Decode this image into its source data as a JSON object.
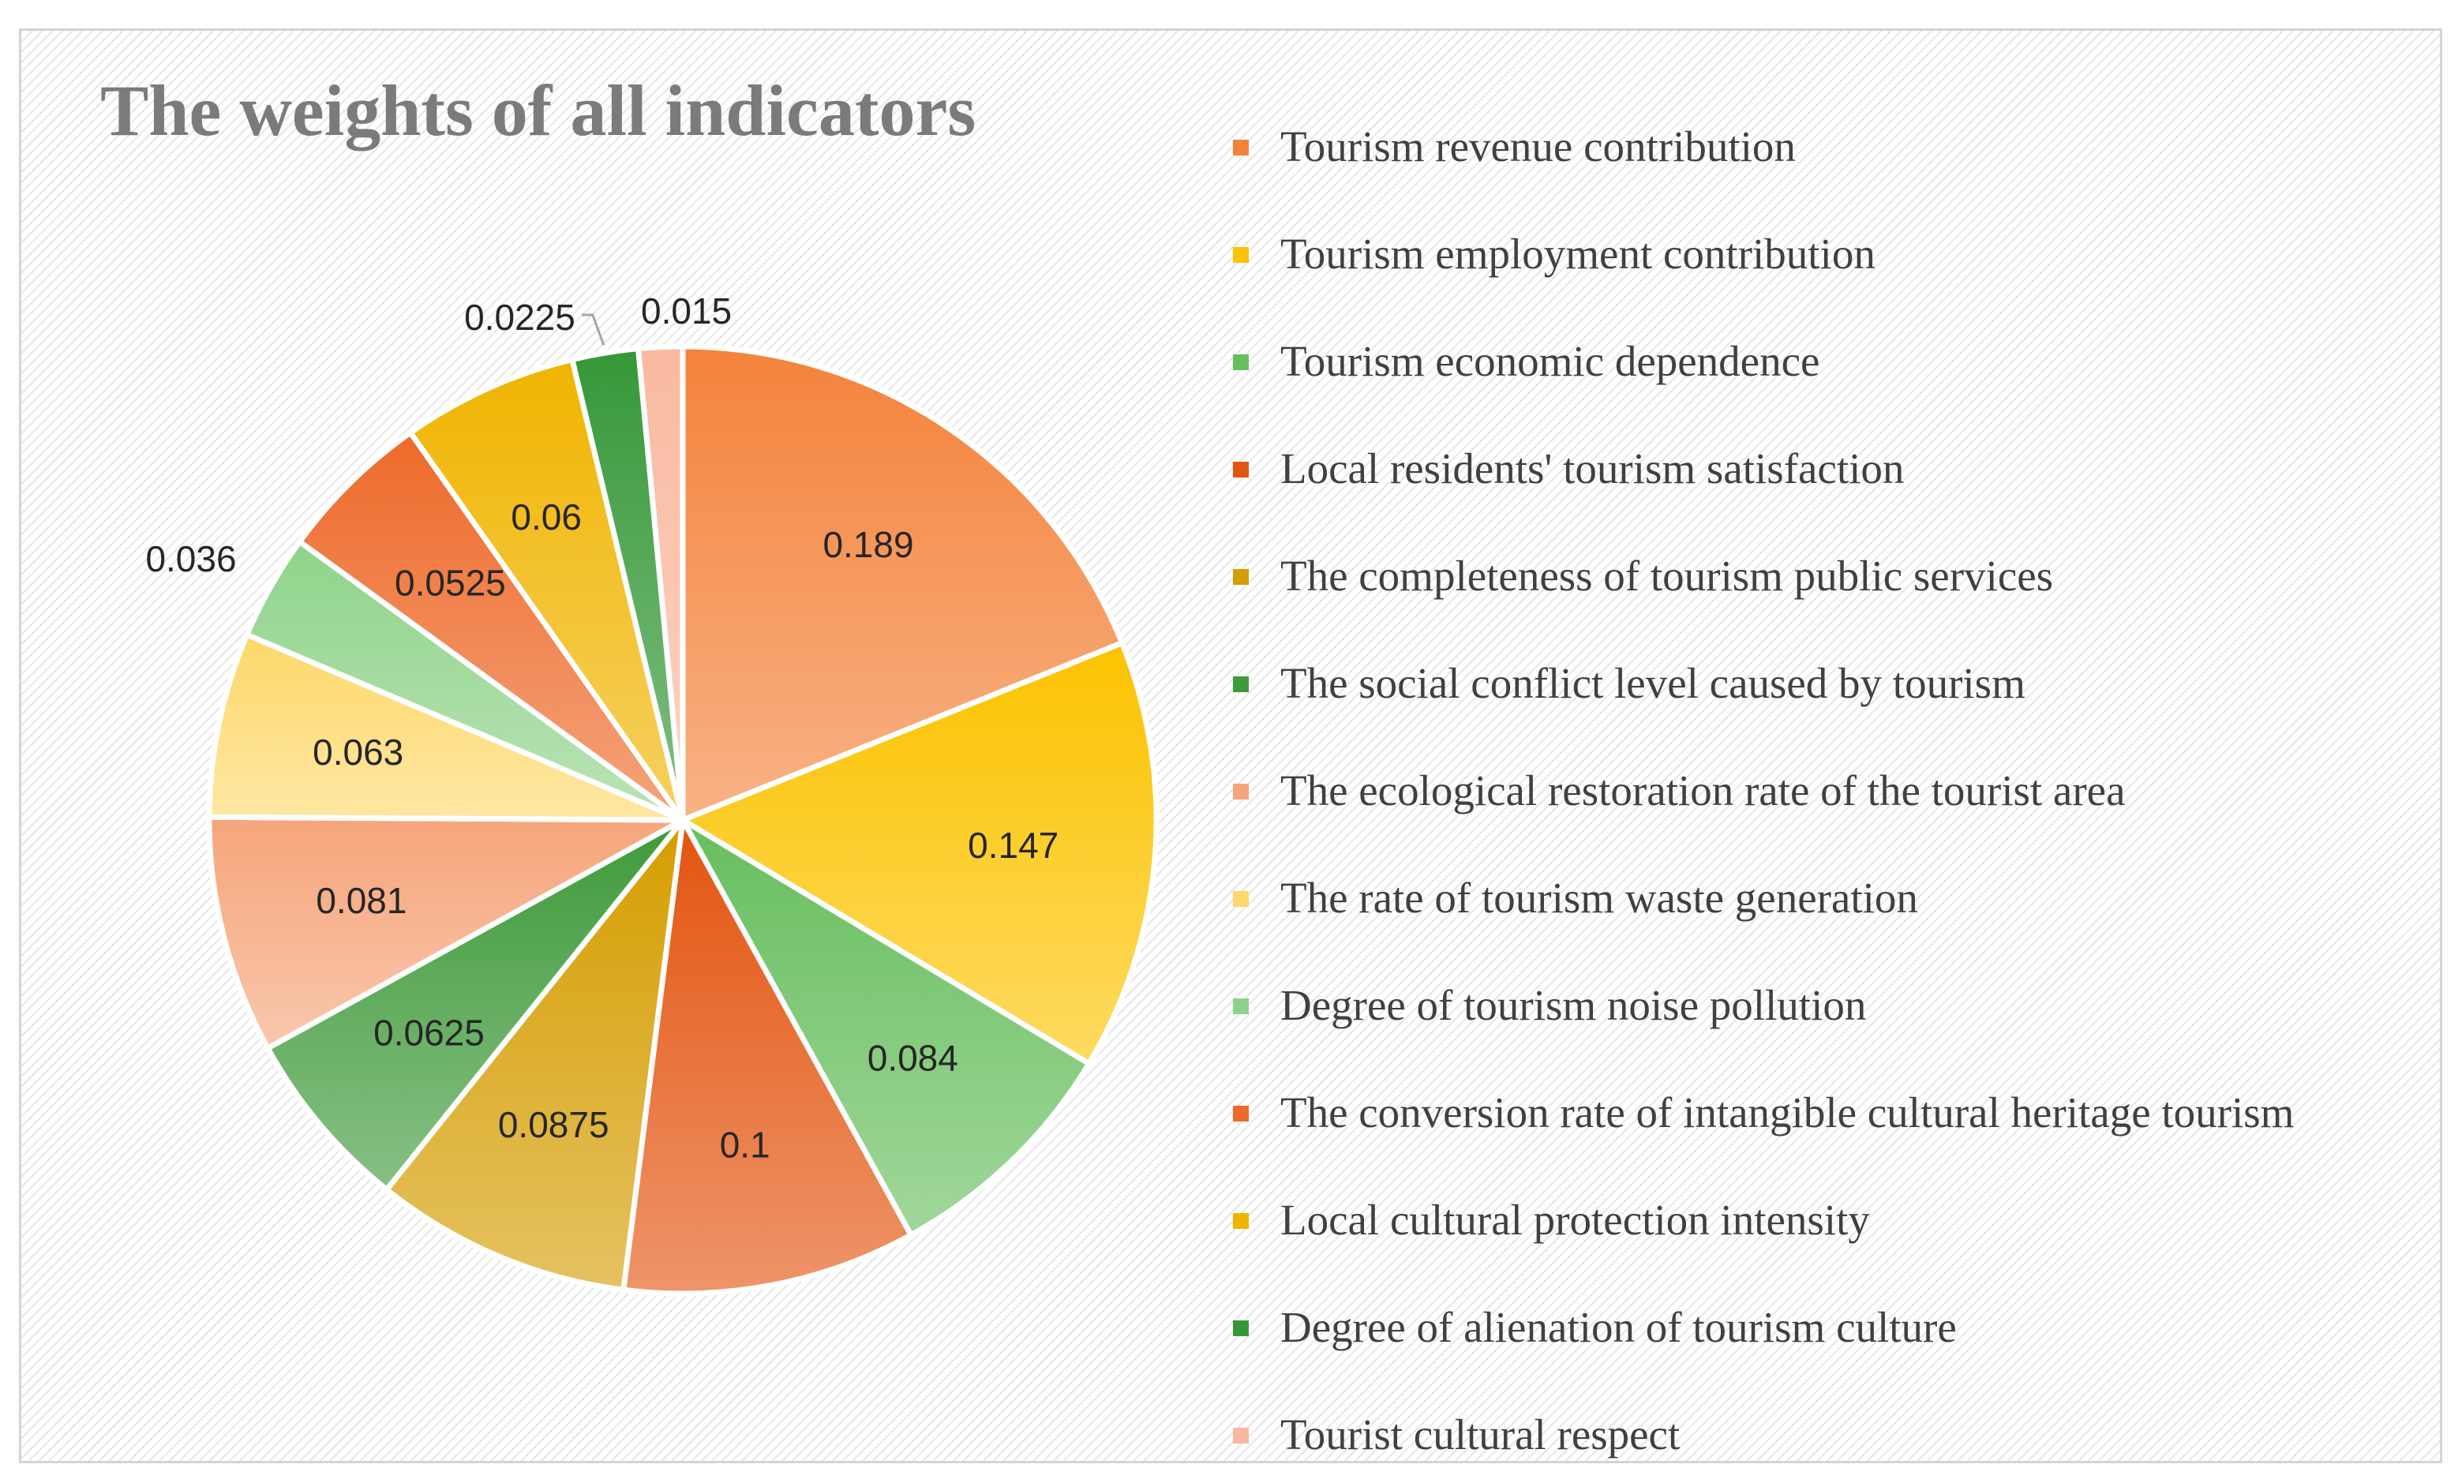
{
  "chart_data": {
    "type": "pie",
    "title": "The weights of all indicators",
    "legend_position": "right",
    "slices": [
      {
        "label": "Tourism revenue contribution",
        "value": 0.189,
        "value_label": "0.189",
        "color": "#f4823b"
      },
      {
        "label": "Tourism employment contribution",
        "value": 0.147,
        "value_label": "0.147",
        "color": "#fcc300"
      },
      {
        "label": "Tourism economic dependence",
        "value": 0.084,
        "value_label": "0.084",
        "color": "#67be5d"
      },
      {
        "label": "Local residents' tourism satisfaction",
        "value": 0.1,
        "value_label": "0.1",
        "color": "#e3540f"
      },
      {
        "label": "The completeness of tourism public services",
        "value": 0.0875,
        "value_label": "0.0875",
        "color": "#d59d00"
      },
      {
        "label": "The social conflict level caused by tourism",
        "value": 0.0625,
        "value_label": "0.0625",
        "color": "#3f9a3a"
      },
      {
        "label": "The ecological restoration rate of the tourist area",
        "value": 0.081,
        "value_label": "0.081",
        "color": "#f6a57a"
      },
      {
        "label": "The rate of tourism waste generation",
        "value": 0.063,
        "value_label": "0.063",
        "color": "#fdd86a"
      },
      {
        "label": "Degree of tourism noise pollution",
        "value": 0.036,
        "value_label": "0.036",
        "color": "#8fd38a"
      },
      {
        "label": "The conversion rate of intangible cultural heritage tourism",
        "value": 0.0525,
        "value_label": "0.0525",
        "color": "#ee6a2a"
      },
      {
        "label": "Local cultural protection intensity",
        "value": 0.06,
        "value_label": "0.06",
        "color": "#f0b400"
      },
      {
        "label": "Degree of alienation of tourism culture",
        "value": 0.0225,
        "value_label": "0.0225",
        "color": "#359838"
      },
      {
        "label": "Tourist cultural respect",
        "value": 0.015,
        "value_label": "0.015",
        "color": "#f9b9a0"
      }
    ]
  }
}
